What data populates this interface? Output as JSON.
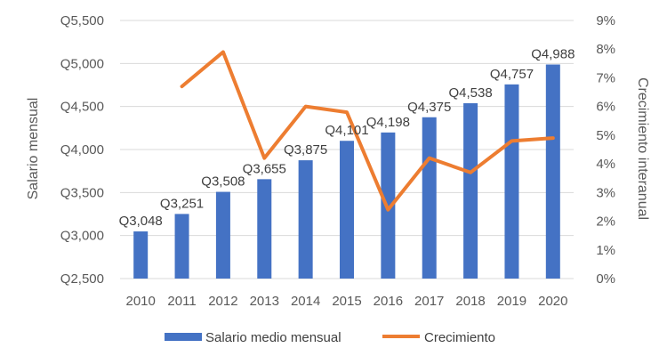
{
  "chart_data": {
    "type": "bar",
    "categories": [
      "2010",
      "2011",
      "2012",
      "2013",
      "2014",
      "2015",
      "2016",
      "2017",
      "2018",
      "2019",
      "2020"
    ],
    "series": [
      {
        "name": "Salario medio mensual",
        "type": "bar",
        "axis": "left",
        "color": "#4472C4",
        "values": [
          3048,
          3251,
          3508,
          3655,
          3875,
          4101,
          4198,
          4375,
          4538,
          4757,
          4988
        ],
        "labels": [
          "Q3,048",
          "Q3,251",
          "Q3,508",
          "Q3,655",
          "Q3,875",
          "Q4,101",
          "Q4,198",
          "Q4,375",
          "Q4,538",
          "Q4,757",
          "Q4,988"
        ]
      },
      {
        "name": "Crecimiento",
        "type": "line",
        "axis": "right",
        "color": "#ED7D31",
        "values": [
          null,
          6.7,
          7.9,
          4.2,
          6.0,
          5.8,
          2.4,
          4.2,
          3.7,
          4.8,
          4.9
        ]
      }
    ],
    "ylabel": "Salario mensual",
    "ylabel_right": "Crecimiento interanual",
    "ylim": [
      2500,
      5500
    ],
    "ylim_right": [
      0,
      9
    ],
    "yticks": [
      "Q2,500",
      "Q3,000",
      "Q3,500",
      "Q4,000",
      "Q4,500",
      "Q5,000",
      "Q5,500"
    ],
    "yticks_right": [
      "0%",
      "1%",
      "2%",
      "3%",
      "4%",
      "5%",
      "6%",
      "7%",
      "8%",
      "9%"
    ],
    "grid": true,
    "legend_position": "bottom"
  }
}
